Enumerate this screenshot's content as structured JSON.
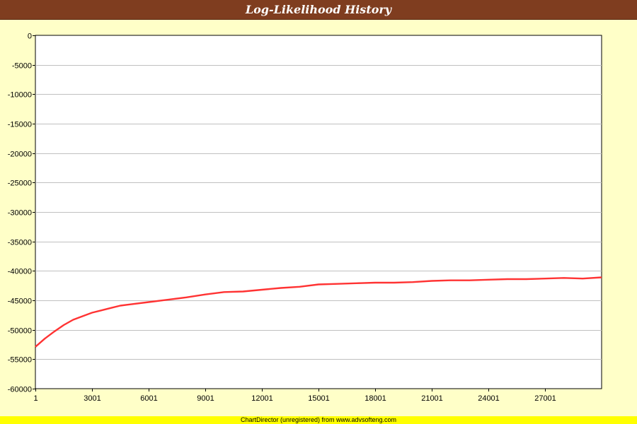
{
  "chart_data": {
    "type": "line",
    "title": "Log-Likelihood History",
    "xlabel": "",
    "ylabel": "",
    "xlim": [
      1,
      30000
    ],
    "ylim": [
      -60000,
      0
    ],
    "y_ticks": [
      0,
      -5000,
      -10000,
      -15000,
      -20000,
      -25000,
      -30000,
      -35000,
      -40000,
      -45000,
      -50000,
      -55000,
      -60000
    ],
    "x_ticks": [
      1,
      3001,
      6001,
      9001,
      12001,
      15001,
      18001,
      21001,
      24001,
      27001
    ],
    "grid": "horizontal",
    "legend": "none",
    "series": [
      {
        "color": "#ff3333",
        "x": [
          1,
          500,
          1000,
          1500,
          2000,
          2500,
          3001,
          3500,
          4000,
          4500,
          5000,
          6001,
          7000,
          8000,
          9001,
          10000,
          11000,
          12001,
          13000,
          14000,
          15001,
          16000,
          17000,
          18001,
          19000,
          20000,
          21001,
          22000,
          23000,
          24001,
          25000,
          26000,
          27001,
          28000,
          29000,
          30000
        ],
        "y": [
          -52900,
          -51500,
          -50300,
          -49200,
          -48300,
          -47700,
          -47100,
          -46700,
          -46300,
          -45900,
          -45700,
          -45300,
          -44900,
          -44500,
          -44000,
          -43600,
          -43500,
          -43200,
          -42900,
          -42700,
          -42300,
          -42200,
          -42100,
          -42000,
          -42000,
          -41900,
          -41700,
          -41600,
          -41600,
          -41500,
          -41400,
          -41400,
          -41300,
          -41200,
          -41300,
          -41100
        ]
      }
    ]
  },
  "footer": {
    "text": "ChartDirector (unregistered) from www.advsofteng.com"
  }
}
